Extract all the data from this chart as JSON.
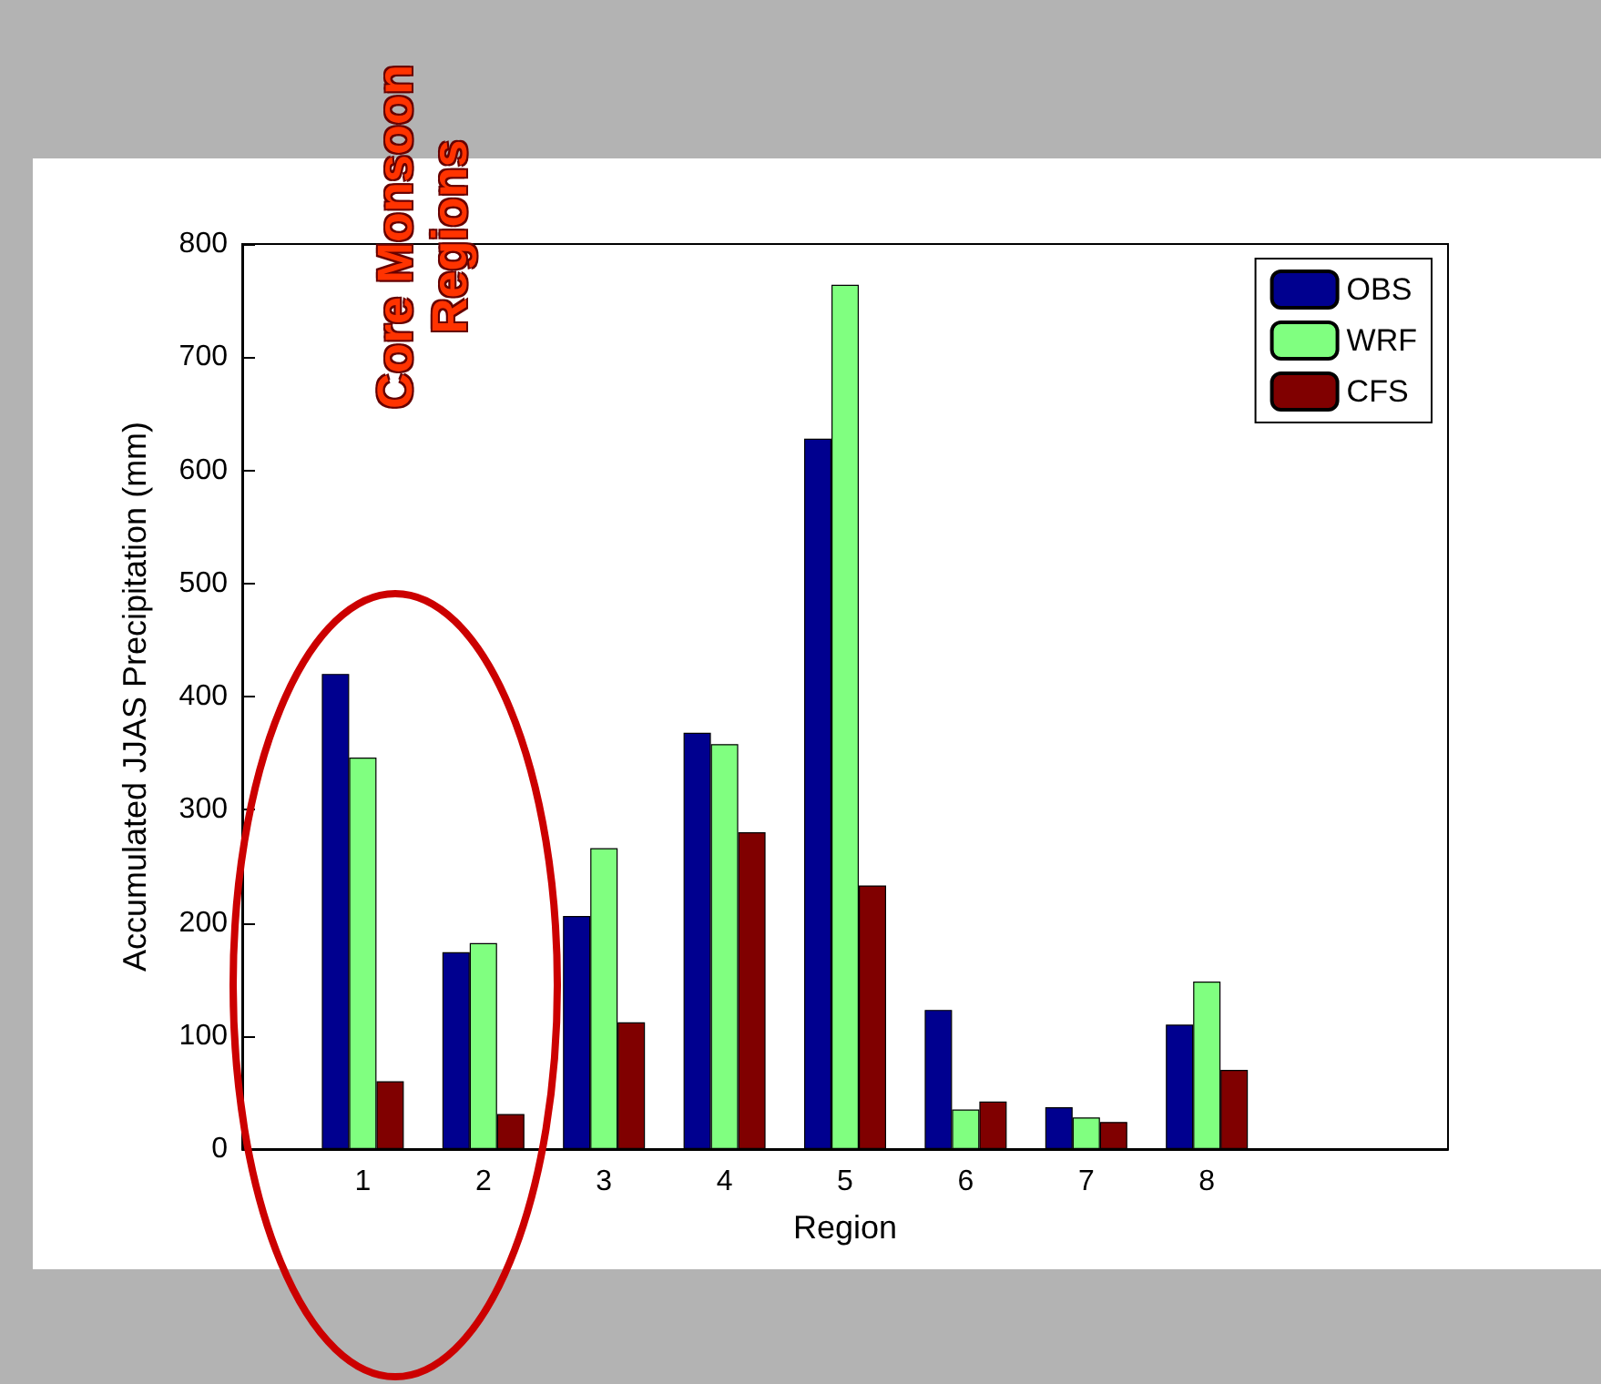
{
  "chart_data": {
    "type": "bar",
    "xlabel": "Region",
    "ylabel": "Accumulated JJAS Precipitation (mm)",
    "x": [
      1,
      2,
      3,
      4,
      5,
      6,
      7,
      8
    ],
    "xlim": [
      0,
      10
    ],
    "xticks": [
      1,
      2,
      3,
      4,
      5,
      6,
      7,
      8
    ],
    "ylim": [
      0,
      800
    ],
    "yticks": [
      0,
      100,
      200,
      300,
      400,
      500,
      600,
      700,
      800
    ],
    "series": [
      {
        "name": "OBS",
        "color": "#00008f",
        "values": [
          420,
          174,
          206,
          368,
          628,
          123,
          37,
          110
        ]
      },
      {
        "name": "WRF",
        "color": "#80ff80",
        "values": [
          346,
          182,
          266,
          358,
          764,
          35,
          28,
          148
        ]
      },
      {
        "name": "CFS",
        "color": "#800000",
        "values": [
          60,
          31,
          112,
          280,
          233,
          42,
          24,
          70
        ]
      }
    ],
    "legend": "top right",
    "grid": false,
    "annotations": [
      "Core Monsoon Regions"
    ]
  }
}
